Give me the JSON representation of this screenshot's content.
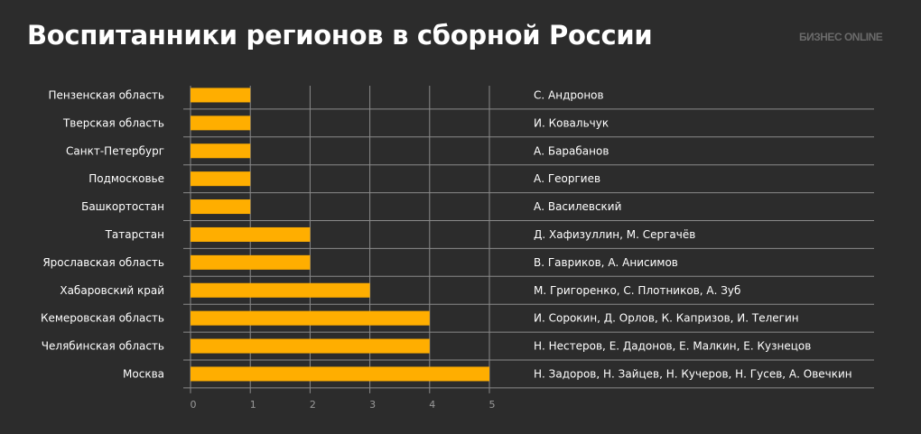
{
  "header": {
    "title": "Воспитанники регионов в сборной России",
    "logo": "БИЗНЕС ONLINE"
  },
  "chart_data": {
    "type": "bar",
    "orientation": "horizontal",
    "categories": [
      "Пензенская область",
      "Тверская область",
      "Санкт-Петербург",
      "Подмосковье",
      "Башкортостан",
      "Татарстан",
      "Ярославская область",
      "Хабаровский край",
      "Кемеровская область",
      "Челябинская область",
      "Москва"
    ],
    "values": [
      1,
      1,
      1,
      1,
      1,
      2,
      2,
      3,
      4,
      4,
      5
    ],
    "annotations": [
      "С. Андронов",
      "И. Ковальчук",
      "А. Барабанов",
      "А. Георгиев",
      "А. Василевский",
      "Д. Хафизуллин, М. Сергачёв",
      "В. Гавриков, А. Анисимов",
      "М. Григоренко, С. Плотников, А. Зуб",
      "И. Сорокин, Д. Орлов, К. Капризов, И. Телегин",
      "Н. Нестеров, Е. Дадонов, Е. Малкин, Е. Кузнецов",
      "Н. Задоров, Н. Зайцев, Н. Кучеров, Н. Гусев, А. Овечкин"
    ],
    "xticks": [
      "0",
      "1",
      "2",
      "3",
      "4",
      "5"
    ],
    "xlim": [
      0,
      5
    ],
    "grid": true,
    "bar_color": "#ffae00"
  }
}
